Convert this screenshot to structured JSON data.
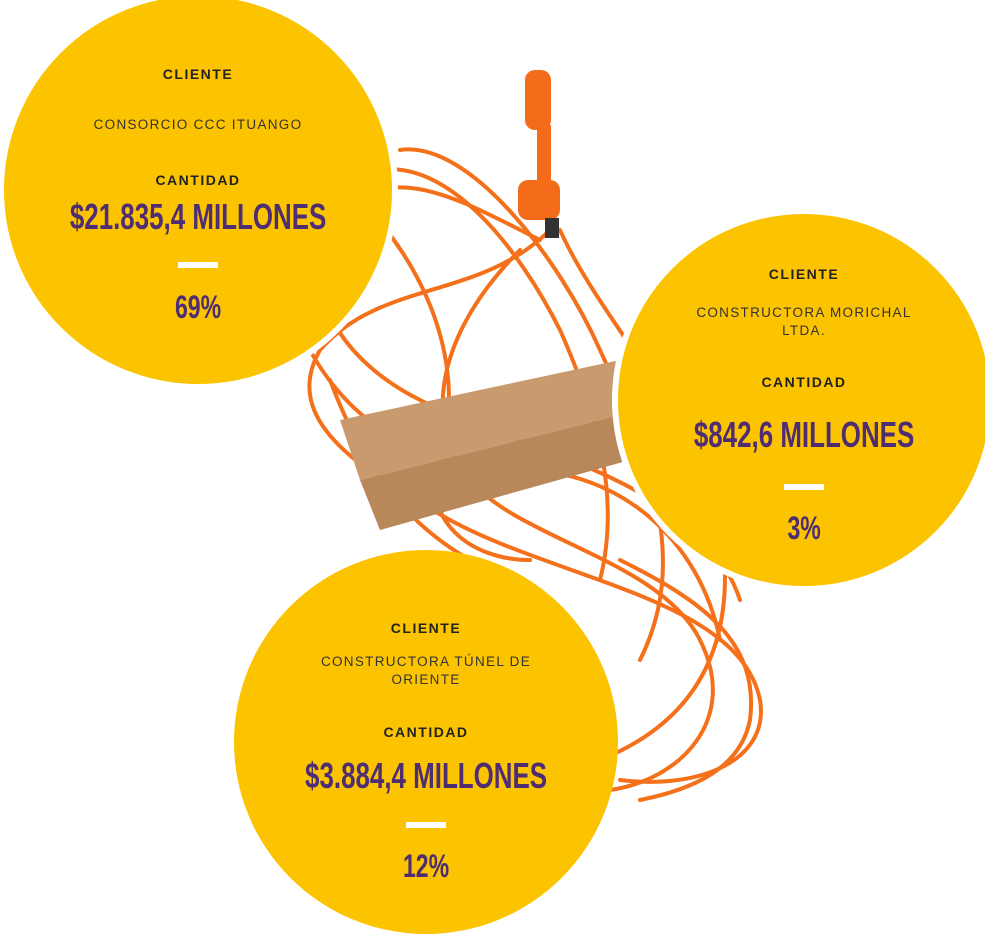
{
  "cards": [
    {
      "client_label": "CLIENTE",
      "client": "CONSORCIO CCC ITUANGO",
      "amount_label": "CANTIDAD",
      "amount": "$21.835,4 MILLONES",
      "percent": "69%"
    },
    {
      "client_label": "CLIENTE",
      "client": "CONSTRUCTORA MORICHAL LTDA.",
      "amount_label": "CANTIDAD",
      "amount": "$842,6 MILLONES",
      "percent": "3%"
    },
    {
      "client_label": "CLIENTE",
      "client": "CONSTRUCTORA TÚNEL DE ORIENTE",
      "amount_label": "CANTIDAD",
      "amount": "$3.884,4 MILLONES",
      "percent": "12%"
    }
  ]
}
